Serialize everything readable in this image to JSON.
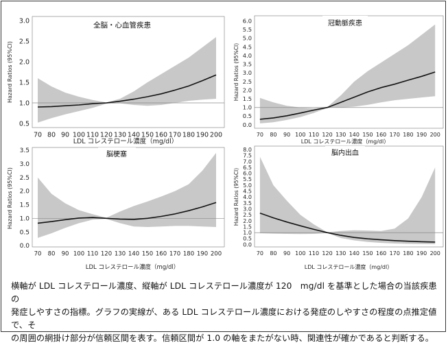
{
  "chart_data": [
    {
      "type": "line",
      "title": "全脳・心血管疾患",
      "xlabel": "LDL コレステロール濃度（mg/dl）",
      "ylabel": "Hazard Ratios (95%CI)",
      "xlim": [
        66,
        206
      ],
      "ylim": [
        0.4,
        3.1
      ],
      "x_ticks": [
        70,
        80,
        90,
        100,
        110,
        120,
        130,
        140,
        150,
        160,
        170,
        180,
        190,
        200
      ],
      "y_ticks": [
        "0.5",
        "1.0",
        "1.5",
        "2.0",
        "2.5",
        "3.0"
      ],
      "reference_line": 1.0,
      "series": [
        {
          "x": [
            70,
            80,
            90,
            100,
            110,
            120,
            130,
            140,
            150,
            160,
            170,
            180,
            190,
            200
          ],
          "y": [
            0.9,
            0.91,
            0.93,
            0.95,
            0.98,
            1.0,
            1.04,
            1.09,
            1.15,
            1.22,
            1.31,
            1.41,
            1.54,
            1.68
          ],
          "lower": [
            0.52,
            0.63,
            0.72,
            0.8,
            0.88,
            0.98,
            0.99,
            0.95,
            0.93,
            0.95,
            1.0,
            1.05,
            1.08,
            1.1
          ],
          "upper": [
            1.6,
            1.4,
            1.25,
            1.15,
            1.07,
            1.01,
            1.1,
            1.28,
            1.5,
            1.7,
            1.9,
            2.1,
            2.35,
            2.6
          ]
        }
      ]
    },
    {
      "type": "line",
      "title": "冠動脈疾患",
      "xlabel": "LDL コレステロール濃度（mg/dl）",
      "ylabel": "Hazard Ratios (95%CI)",
      "xlim": [
        66,
        206
      ],
      "ylim": [
        -0.2,
        6.3
      ],
      "x_ticks": [
        70,
        80,
        90,
        100,
        110,
        120,
        130,
        140,
        150,
        160,
        170,
        180,
        190,
        200
      ],
      "y_ticks": [
        "0.0",
        "0.5",
        "1.0",
        "1.5",
        "2.0",
        "2.5",
        "3.0",
        "3.5",
        "4.0",
        "4.5",
        "5.0",
        "5.5",
        "6.0"
      ],
      "reference_line": 1.0,
      "series": [
        {
          "x": [
            70,
            80,
            90,
            100,
            110,
            120,
            130,
            140,
            150,
            160,
            170,
            180,
            190,
            200
          ],
          "y": [
            0.32,
            0.4,
            0.52,
            0.68,
            0.85,
            1.0,
            1.3,
            1.6,
            1.9,
            2.15,
            2.35,
            2.58,
            2.8,
            3.05
          ],
          "lower": [
            0.08,
            0.15,
            0.28,
            0.45,
            0.68,
            0.98,
            1.0,
            1.05,
            1.15,
            1.3,
            1.42,
            1.5,
            1.58,
            1.65
          ],
          "upper": [
            1.55,
            1.3,
            1.1,
            1.0,
            0.95,
            1.03,
            1.7,
            2.5,
            3.1,
            3.6,
            4.1,
            4.6,
            5.2,
            5.8
          ]
        }
      ]
    },
    {
      "type": "line",
      "title": "脳梗塞",
      "xlabel": "LDL コレステロール濃度（mg/dl）",
      "ylabel": "Hazard Ratios (95%CI)",
      "xlim": [
        66,
        206
      ],
      "ylim": [
        -0.05,
        3.6
      ],
      "x_ticks": [
        70,
        80,
        90,
        100,
        110,
        120,
        130,
        140,
        150,
        160,
        170,
        180,
        190,
        200
      ],
      "y_ticks": [
        "0.0",
        "0.5",
        "1.0",
        "1.5",
        "2.0",
        "2.5",
        "3.0",
        "3.5"
      ],
      "reference_line": 1.0,
      "series": [
        {
          "x": [
            70,
            80,
            90,
            100,
            110,
            120,
            130,
            140,
            150,
            160,
            170,
            180,
            190,
            200
          ],
          "y": [
            0.82,
            0.88,
            0.95,
            1.01,
            1.03,
            1.0,
            0.97,
            0.96,
            1.0,
            1.07,
            1.16,
            1.28,
            1.42,
            1.58
          ],
          "lower": [
            0.28,
            0.45,
            0.65,
            0.82,
            0.95,
            0.98,
            0.82,
            0.7,
            0.68,
            0.7,
            0.72,
            0.72,
            0.7,
            0.68
          ],
          "upper": [
            2.5,
            1.9,
            1.55,
            1.3,
            1.15,
            1.02,
            1.25,
            1.45,
            1.62,
            1.8,
            2.0,
            2.25,
            2.75,
            3.4
          ]
        }
      ]
    },
    {
      "type": "line",
      "title": "脳内出血",
      "xlabel": "LDL コレステロール濃度（mg/dl）",
      "ylabel": "Hazard Ratios (95%CI)",
      "xlim": [
        66,
        206
      ],
      "ylim": [
        -0.2,
        8.3
      ],
      "x_ticks": [
        70,
        80,
        90,
        100,
        110,
        120,
        130,
        140,
        150,
        160,
        170,
        180,
        190,
        200
      ],
      "y_ticks": [
        "0.0",
        "0.5",
        "1.0",
        "1.5",
        "2.0",
        "2.5",
        "3.0",
        "3.5",
        "4.0",
        "4.5",
        "5.0",
        "5.5",
        "6.0",
        "6.5",
        "7.0",
        "7.5",
        "8.0"
      ],
      "reference_line": 1.0,
      "series": [
        {
          "x": [
            70,
            80,
            90,
            100,
            110,
            120,
            130,
            140,
            150,
            160,
            170,
            180,
            190,
            200
          ],
          "y": [
            2.65,
            2.25,
            1.9,
            1.58,
            1.28,
            1.0,
            0.78,
            0.6,
            0.48,
            0.4,
            0.33,
            0.28,
            0.24,
            0.21
          ],
          "lower": [
            0.95,
            0.92,
            0.9,
            0.88,
            0.9,
            0.97,
            0.55,
            0.35,
            0.22,
            0.14,
            0.09,
            0.06,
            0.04,
            0.03
          ],
          "upper": [
            7.4,
            5.0,
            3.7,
            2.5,
            1.7,
            1.03,
            1.15,
            1.2,
            1.18,
            1.15,
            1.35,
            2.2,
            4.0,
            6.5
          ]
        }
      ]
    }
  ],
  "caption": {
    "line1": "横軸が LDL コレステロール濃度、縦軸が LDL コレステロール濃度が 120　mg/dl を基準とした場合の当該疾患の",
    "line2": "発症しやすさの指標。グラフの実線が、ある LDL コレステロール濃度における発症のしやすさの程度の点推定値で、そ",
    "line3": "の周囲の網掛け部分が信頼区間を表す。信頼区間が 1.0 の軸をまたがない時、関連性が確かであると判断する。"
  },
  "colors": {
    "band": "#c8c8c8",
    "line": "#111111",
    "reference": "#8a8a8a",
    "axis_text": "#222222",
    "plot_border": "#777777"
  }
}
